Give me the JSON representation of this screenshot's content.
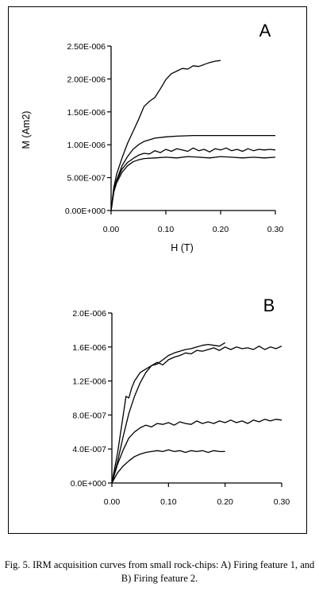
{
  "figure": {
    "caption": "Fig. 5. IRM acquisition curves from small rock-chips: A) Firing feature 1, and B) Firing feature 2.",
    "colors": {
      "line": "#000000",
      "background": "#ffffff"
    }
  },
  "chart_data": [
    {
      "type": "line",
      "panel_label": "A",
      "xlabel": "H (T)",
      "ylabel": "M (Am2)",
      "xlim": [
        0,
        0.3
      ],
      "ylim": [
        0,
        2.5e-06
      ],
      "x_ticks": [
        0,
        0.1,
        0.2,
        0.3
      ],
      "x_tick_labels": [
        "0.00",
        "0.10",
        "0.20",
        "0.30"
      ],
      "y_ticks": [
        0,
        5e-07,
        1e-06,
        1.5e-06,
        2e-06,
        2.5e-06
      ],
      "y_tick_labels": [
        "0.00E+000",
        "5.00E-007",
        "1.00E-006",
        "1.50E-006",
        "2.00E-006",
        "2.50E-006"
      ],
      "grid": false,
      "series": [
        {
          "x": [
            0,
            0.005,
            0.01,
            0.02,
            0.03,
            0.04,
            0.05,
            0.06,
            0.07,
            0.08,
            0.09,
            0.1,
            0.11,
            0.12,
            0.13,
            0.14,
            0.15,
            0.16,
            0.17,
            0.18,
            0.19,
            0.2
          ],
          "y": [
            0,
            3.5e-07,
            5.5e-07,
            8e-07,
            1.02e-06,
            1.2e-06,
            1.38e-06,
            1.58e-06,
            1.66e-06,
            1.72e-06,
            1.85e-06,
            1.99e-06,
            2.08e-06,
            2.12e-06,
            2.16e-06,
            2.15e-06,
            2.2e-06,
            2.19e-06,
            2.22e-06,
            2.25e-06,
            2.27e-06,
            2.28e-06
          ]
        },
        {
          "x": [
            0,
            0.005,
            0.01,
            0.02,
            0.03,
            0.04,
            0.05,
            0.06,
            0.08,
            0.1,
            0.12,
            0.15,
            0.18,
            0.2,
            0.25,
            0.3
          ],
          "y": [
            0,
            3e-07,
            4.6e-07,
            6.8e-07,
            8.2e-07,
            9.3e-07,
            1e-06,
            1.05e-06,
            1.1e-06,
            1.12e-06,
            1.13e-06,
            1.14e-06,
            1.14e-06,
            1.14e-06,
            1.14e-06,
            1.14e-06
          ]
        },
        {
          "x": [
            0,
            0.005,
            0.01,
            0.02,
            0.03,
            0.04,
            0.05,
            0.06,
            0.07,
            0.08,
            0.09,
            0.1,
            0.11,
            0.12,
            0.13,
            0.14,
            0.15,
            0.16,
            0.17,
            0.18,
            0.19,
            0.2,
            0.21,
            0.22,
            0.23,
            0.24,
            0.25,
            0.26,
            0.27,
            0.28,
            0.29,
            0.3
          ],
          "y": [
            0,
            3e-07,
            4.5e-07,
            6.3e-07,
            7.3e-07,
            7.9e-07,
            8.4e-07,
            8.7e-07,
            8.6e-07,
            9.1e-07,
            8.8e-07,
            9.3e-07,
            9e-07,
            9.4e-07,
            9.2e-07,
            9e-07,
            9.5e-07,
            9.1e-07,
            9.3e-07,
            8.9e-07,
            9.4e-07,
            9.2e-07,
            9.5e-07,
            9.1e-07,
            9.3e-07,
            9e-07,
            9.4e-07,
            9.1e-07,
            9.3e-07,
            9.2e-07,
            9.3e-07,
            9.2e-07
          ]
        },
        {
          "x": [
            0,
            0.005,
            0.01,
            0.02,
            0.03,
            0.04,
            0.05,
            0.06,
            0.08,
            0.1,
            0.12,
            0.14,
            0.16,
            0.18,
            0.2,
            0.22,
            0.24,
            0.26,
            0.28,
            0.3
          ],
          "y": [
            0,
            2.8e-07,
            4.2e-07,
            5.8e-07,
            6.8e-07,
            7.4e-07,
            7.7e-07,
            7.9e-07,
            8e-07,
            8.1e-07,
            8e-07,
            8.2e-07,
            8.1e-07,
            8e-07,
            8.2e-07,
            8.1e-07,
            8e-07,
            8.1e-07,
            8e-07,
            8.1e-07
          ]
        }
      ]
    },
    {
      "type": "line",
      "panel_label": "B",
      "xlabel": "",
      "ylabel": "",
      "xlim": [
        0,
        0.3
      ],
      "ylim": [
        0,
        2e-06
      ],
      "x_ticks": [
        0,
        0.1,
        0.2,
        0.3
      ],
      "x_tick_labels": [
        "0.00",
        "0.10",
        "0.20",
        "0.30"
      ],
      "y_ticks": [
        0,
        4e-07,
        8e-07,
        1.2e-06,
        1.6e-06,
        2e-06
      ],
      "y_tick_labels": [
        "0.0E+000",
        "4.0E-007",
        "8.0E-007",
        "1.2E-006",
        "1.6E-006",
        "2.0E-006"
      ],
      "grid": false,
      "series": [
        {
          "x": [
            0,
            0.01,
            0.02,
            0.025,
            0.03,
            0.035,
            0.04,
            0.05,
            0.06,
            0.07,
            0.08,
            0.09,
            0.1,
            0.11,
            0.12,
            0.13,
            0.14,
            0.15,
            0.16,
            0.17,
            0.18,
            0.19,
            0.2
          ],
          "y": [
            0,
            3.5e-07,
            8e-07,
            1.02e-06,
            1e-06,
            1.12e-06,
            1.2e-06,
            1.3e-06,
            1.34e-06,
            1.38e-06,
            1.4e-06,
            1.45e-06,
            1.5e-06,
            1.53e-06,
            1.55e-06,
            1.57e-06,
            1.58e-06,
            1.6e-06,
            1.62e-06,
            1.63e-06,
            1.62e-06,
            1.61e-06,
            1.65e-06
          ]
        },
        {
          "x": [
            0,
            0.01,
            0.02,
            0.03,
            0.04,
            0.05,
            0.06,
            0.07,
            0.08,
            0.09,
            0.1,
            0.11,
            0.12,
            0.13,
            0.14,
            0.15,
            0.16,
            0.17,
            0.18,
            0.19,
            0.2,
            0.21,
            0.22,
            0.23,
            0.24,
            0.25,
            0.26,
            0.27,
            0.28,
            0.29,
            0.3
          ],
          "y": [
            0,
            2.5e-07,
            5.5e-07,
            8.2e-07,
            1.02e-06,
            1.18e-06,
            1.3e-06,
            1.38e-06,
            1.42e-06,
            1.39e-06,
            1.45e-06,
            1.48e-06,
            1.5e-06,
            1.53e-06,
            1.52e-06,
            1.56e-06,
            1.55e-06,
            1.57e-06,
            1.59e-06,
            1.56e-06,
            1.6e-06,
            1.57e-06,
            1.6e-06,
            1.58e-06,
            1.59e-06,
            1.57e-06,
            1.61e-06,
            1.57e-06,
            1.6e-06,
            1.58e-06,
            1.61e-06
          ]
        },
        {
          "x": [
            0,
            0.01,
            0.02,
            0.03,
            0.04,
            0.05,
            0.06,
            0.07,
            0.08,
            0.09,
            0.1,
            0.11,
            0.12,
            0.13,
            0.14,
            0.15,
            0.16,
            0.17,
            0.18,
            0.19,
            0.2,
            0.21,
            0.22,
            0.23,
            0.24,
            0.25,
            0.26,
            0.27,
            0.28,
            0.29,
            0.3
          ],
          "y": [
            0,
            2.2e-07,
            3.9e-07,
            5.3e-07,
            6e-07,
            6.5e-07,
            6.8e-07,
            6.6e-07,
            7e-07,
            6.9e-07,
            7.1e-07,
            6.8e-07,
            7.2e-07,
            7e-07,
            6.9e-07,
            7.3e-07,
            7e-07,
            7.2e-07,
            7e-07,
            7.3e-07,
            7.1e-07,
            7.4e-07,
            7.1e-07,
            7.3e-07,
            7e-07,
            7.4e-07,
            7.2e-07,
            7.5e-07,
            7.3e-07,
            7.5e-07,
            7.4e-07
          ]
        },
        {
          "x": [
            0,
            0.01,
            0.02,
            0.03,
            0.04,
            0.05,
            0.06,
            0.07,
            0.08,
            0.09,
            0.1,
            0.11,
            0.12,
            0.13,
            0.14,
            0.15,
            0.16,
            0.17,
            0.18,
            0.19,
            0.2
          ],
          "y": [
            0,
            1.2e-07,
            2e-07,
            2.6e-07,
            3.1e-07,
            3.4e-07,
            3.6e-07,
            3.7e-07,
            3.8e-07,
            3.7e-07,
            3.9e-07,
            3.7e-07,
            3.8e-07,
            3.6e-07,
            3.8e-07,
            3.7e-07,
            3.8e-07,
            3.6e-07,
            3.8e-07,
            3.7e-07,
            3.7e-07
          ]
        }
      ]
    }
  ]
}
